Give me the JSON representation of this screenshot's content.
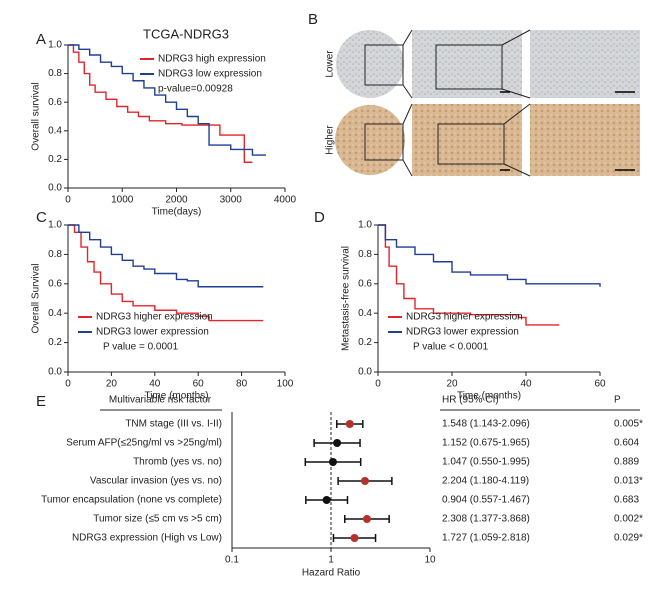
{
  "panel_labels": [
    "A",
    "B",
    "C",
    "D",
    "E"
  ],
  "panel_b": {
    "rows": [
      "Lower",
      "Higher"
    ]
  },
  "chart_data": [
    {
      "type": "km",
      "title": "TCGA-NDRG3",
      "xlabel": "Time(days)",
      "ylabel": "Overall survival",
      "annotation": "p-value=0.00928",
      "xlim": [
        0,
        4000
      ],
      "xticks": [
        0,
        1000,
        2000,
        3000,
        4000
      ],
      "ylim": [
        0,
        1
      ],
      "yticks": [
        {
          "value": 0,
          "label": "0.0"
        },
        0.2,
        0.4,
        0.6,
        0.8,
        {
          "value": 1,
          "label": "1.0"
        }
      ],
      "series": [
        {
          "name": "NDRG3 high expression",
          "color": "#e0262c",
          "x": [
            0,
            100,
            200,
            300,
            400,
            500,
            700,
            900,
            1100,
            1300,
            1500,
            1800,
            2100,
            2600,
            2800,
            3000,
            3250,
            3400
          ],
          "values": [
            1,
            0.95,
            0.88,
            0.8,
            0.72,
            0.67,
            0.62,
            0.57,
            0.53,
            0.5,
            0.47,
            0.45,
            0.44,
            0.44,
            0.37,
            0.37,
            0.18,
            0.18
          ]
        },
        {
          "name": "NDRG3 low expression",
          "color": "#1f3f94",
          "x": [
            0,
            200,
            400,
            600,
            800,
            1000,
            1200,
            1400,
            1600,
            1800,
            2000,
            2200,
            2400,
            2600,
            3000,
            3400,
            3650
          ],
          "values": [
            1,
            0.97,
            0.93,
            0.88,
            0.85,
            0.8,
            0.75,
            0.7,
            0.65,
            0.6,
            0.55,
            0.5,
            0.45,
            0.3,
            0.27,
            0.23,
            0.23
          ]
        }
      ]
    },
    {
      "type": "km",
      "xlabel": "Time (months)",
      "ylabel": "Overall Survival",
      "annotation": "P value = 0.0001",
      "xlim": [
        0,
        100
      ],
      "xticks": [
        0,
        20,
        40,
        60,
        80,
        100
      ],
      "ylim": [
        0,
        1
      ],
      "yticks": [
        {
          "value": 0,
          "label": "0.0"
        },
        0.2,
        0.4,
        0.6,
        0.8,
        {
          "value": 1,
          "label": "1.0"
        }
      ],
      "series": [
        {
          "name": "NDRG3 higher expression",
          "color": "#e0262c",
          "x": [
            0,
            3,
            6,
            9,
            12,
            15,
            20,
            25,
            30,
            40,
            50,
            60,
            65,
            90
          ],
          "values": [
            1,
            0.95,
            0.85,
            0.75,
            0.68,
            0.6,
            0.53,
            0.48,
            0.45,
            0.42,
            0.4,
            0.38,
            0.35,
            0.35
          ]
        },
        {
          "name": "NDRG3 lower expression",
          "color": "#1f3f94",
          "x": [
            0,
            5,
            10,
            15,
            20,
            25,
            30,
            35,
            40,
            50,
            55,
            60,
            90
          ],
          "values": [
            1,
            0.95,
            0.9,
            0.85,
            0.8,
            0.76,
            0.72,
            0.7,
            0.67,
            0.63,
            0.62,
            0.58,
            0.58
          ]
        }
      ]
    },
    {
      "type": "km",
      "xlabel": "Time (months)",
      "ylabel": "Metastasis-free survival",
      "annotation": "P value < 0.0001",
      "xlim": [
        0,
        60
      ],
      "xticks": [
        0,
        20,
        40,
        60
      ],
      "ylim": [
        0,
        1
      ],
      "yticks": [
        {
          "value": 0,
          "label": "0.0"
        },
        0.2,
        0.4,
        0.6,
        0.8,
        {
          "value": 1,
          "label": "1.0"
        }
      ],
      "series": [
        {
          "name": "NDRG3 higher expression",
          "color": "#e0262c",
          "x": [
            0,
            2,
            3,
            5,
            7,
            10,
            15,
            25,
            38,
            40,
            49
          ],
          "values": [
            1,
            0.85,
            0.72,
            0.6,
            0.5,
            0.43,
            0.4,
            0.39,
            0.37,
            0.32,
            0.32
          ]
        },
        {
          "name": "NDRG3 lower expression",
          "color": "#1f3f94",
          "x": [
            0,
            2,
            5,
            10,
            15,
            20,
            25,
            35,
            40,
            60
          ],
          "values": [
            1,
            0.9,
            0.85,
            0.8,
            0.75,
            0.68,
            0.66,
            0.63,
            0.6,
            0.58
          ]
        }
      ]
    },
    {
      "type": "forest",
      "header_factor": "Multivariable risk factor",
      "header_hr": "HR (95% CI)",
      "header_p": "P",
      "xlabel": "Hazard Ratio",
      "xlim": [
        0.1,
        10
      ],
      "xticks": [
        0.1,
        1,
        10
      ],
      "log": true,
      "categories": [
        "TNM stage (III vs. I-II)",
        "Serum AFP(≤25ng/ml vs >25ng/ml)",
        "Thromb (yes vs. no)",
        "Vascular invasion (yes vs. no)",
        "Tumor encapsulation (none vs complete)",
        "Tumor size (≤5 cm vs >5 cm)",
        "NDRG3 expression (High vs Low)"
      ],
      "values": [
        1.548,
        1.152,
        1.047,
        2.204,
        0.904,
        2.308,
        1.727
      ],
      "lo": [
        1.143,
        0.675,
        0.55,
        1.18,
        0.557,
        1.377,
        1.059
      ],
      "hi": [
        2.096,
        1.965,
        1.995,
        4.119,
        1.467,
        3.868,
        2.818
      ],
      "value_labels": [
        "1.548 (1.143-2.096)",
        "1.152 (0.675-1.965)",
        "1.047 (0.550-1.995)",
        "2.204 (1.180-4.119)",
        "0.904 (0.557-1.467)",
        "2.308 (1.377-3.868)",
        "1.727 (1.059-2.818)"
      ],
      "p_labels": [
        "0.005*",
        "0.604",
        "0.889",
        "0.013*",
        "0.683",
        "0.002*",
        "0.029*"
      ],
      "colors": [
        "#b5312c",
        "#111111",
        "#111111",
        "#b5312c",
        "#111111",
        "#b5312c",
        "#b5312c"
      ]
    }
  ]
}
